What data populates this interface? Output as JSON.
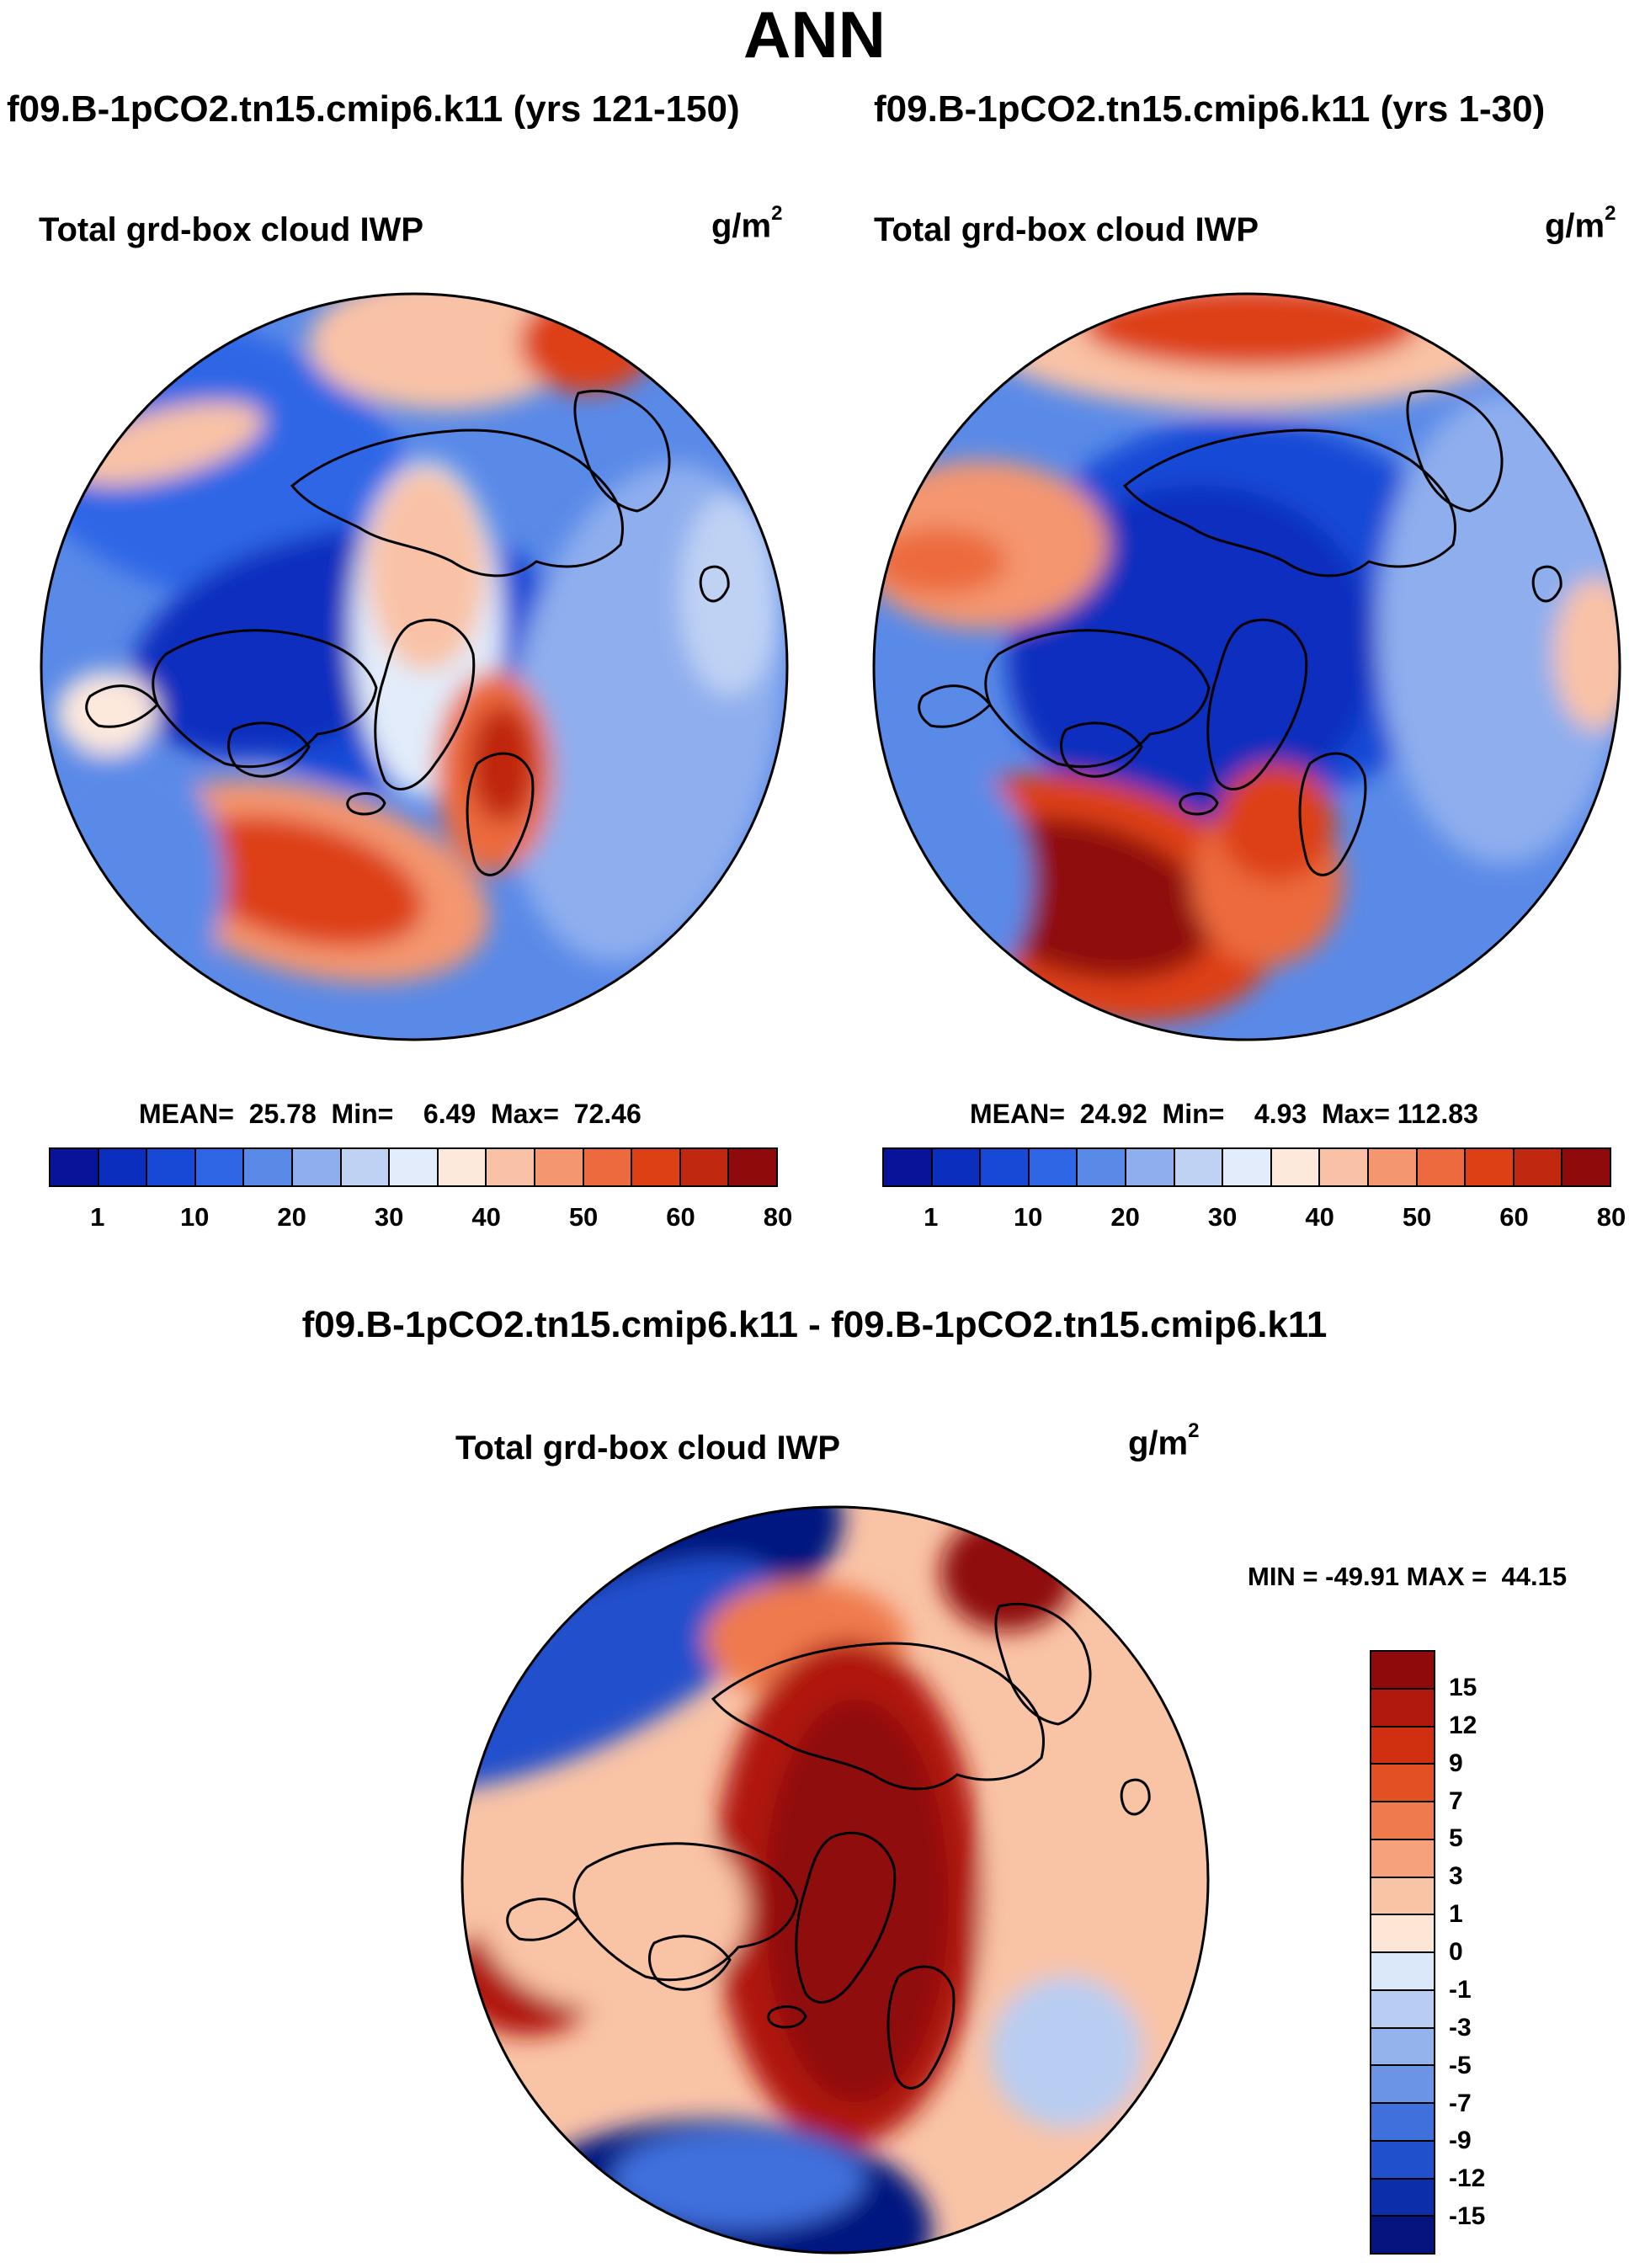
{
  "figure": {
    "title": "ANN"
  },
  "panels": {
    "left": {
      "case_title": "f09.B-1pCO2.tn15.cmip6.k11 (yrs 121-150)",
      "field_title": "Total grd-box cloud IWP",
      "units_base": "g/m",
      "units_exp": "2",
      "stats": "MEAN=  25.78  Min=    6.49  Max=  72.46"
    },
    "right": {
      "case_title": "f09.B-1pCO2.tn15.cmip6.k11 (yrs 1-30)",
      "field_title": "Total grd-box cloud IWP",
      "units_base": "g/m",
      "units_exp": "2",
      "stats": "MEAN=  24.92  Min=    4.93  Max= 112.83"
    },
    "diff": {
      "case_title": "f09.B-1pCO2.tn15.cmip6.k11 - f09.B-1pCO2.tn15.cmip6.k11",
      "field_title": "Total grd-box cloud IWP",
      "units_base": "g/m",
      "units_exp": "2",
      "stats": "MIN = -49.91 MAX =  44.15"
    }
  },
  "chart_data": [
    {
      "type": "heatmap",
      "projection": "north-polar-stereographic",
      "title": "Total grd-box cloud IWP",
      "case": "f09.B-1pCO2.tn15.cmip6.k11 (yrs 121-150)",
      "units": "g/m^2",
      "mean": 25.78,
      "min": 6.49,
      "max": 72.46,
      "colorbar": {
        "orientation": "horizontal",
        "tick_labels": [
          "1",
          "10",
          "20",
          "30",
          "40",
          "50",
          "60",
          "80"
        ],
        "colors": [
          "#08139a",
          "#0c2ebe",
          "#1748d6",
          "#2f66e6",
          "#5a8ae8",
          "#8eaeee",
          "#bfd2f4",
          "#e2ecfa",
          "#fde8dc",
          "#f9c2a6",
          "#f4966f",
          "#ec6a3e",
          "#dd4014",
          "#c02810",
          "#8f0a0a"
        ]
      }
    },
    {
      "type": "heatmap",
      "projection": "north-polar-stereographic",
      "title": "Total grd-box cloud IWP",
      "case": "f09.B-1pCO2.tn15.cmip6.k11 (yrs 1-30)",
      "units": "g/m^2",
      "mean": 24.92,
      "min": 4.93,
      "max": 112.83,
      "colorbar": {
        "orientation": "horizontal",
        "tick_labels": [
          "1",
          "10",
          "20",
          "30",
          "40",
          "50",
          "60",
          "80"
        ],
        "colors": [
          "#08139a",
          "#0c2ebe",
          "#1748d6",
          "#2f66e6",
          "#5a8ae8",
          "#8eaeee",
          "#bfd2f4",
          "#e2ecfa",
          "#fde8dc",
          "#f9c2a6",
          "#f4966f",
          "#ec6a3e",
          "#dd4014",
          "#c02810",
          "#8f0a0a"
        ]
      }
    },
    {
      "type": "heatmap",
      "projection": "north-polar-stereographic",
      "title": "Total grd-box cloud IWP",
      "case": "f09.B-1pCO2.tn15.cmip6.k11 - f09.B-1pCO2.tn15.cmip6.k11",
      "units": "g/m^2",
      "min": -49.91,
      "max": 44.15,
      "colorbar": {
        "orientation": "vertical",
        "tick_labels": [
          "15",
          "12",
          "9",
          "7",
          "5",
          "3",
          "1",
          "0",
          "-1",
          "-3",
          "-5",
          "-7",
          "-9",
          "-12",
          "-15"
        ],
        "colors": [
          "#8f0a0a",
          "#b0190c",
          "#d0300f",
          "#e35024",
          "#ef7a4e",
          "#f6a07c",
          "#f9c3a6",
          "#fde6d6",
          "#dbe8fa",
          "#b8cdf2",
          "#94b3ec",
          "#6b93e6",
          "#4070dc",
          "#2050cc",
          "#0c2ea8",
          "#061480"
        ]
      }
    }
  ]
}
